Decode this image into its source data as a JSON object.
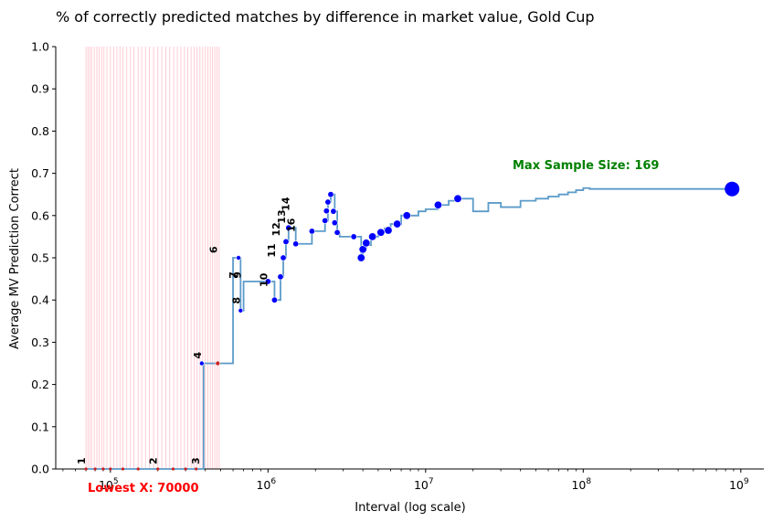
{
  "chart_data": {
    "type": "line",
    "title": "% of correctly predicted matches by difference in market value, Gold Cup",
    "xlabel": "Interval (log scale)",
    "ylabel": "Average MV Prediction Correct",
    "xscale": "log",
    "xlim": [
      45000,
      1400000000
    ],
    "ylim": [
      0,
      1
    ],
    "x_tick_labels": [
      {
        "exp": "5",
        "value": 100000
      },
      {
        "exp": "6",
        "value": 1000000
      },
      {
        "exp": "7",
        "value": 10000000
      },
      {
        "exp": "8",
        "value": 100000000
      },
      {
        "exp": "9",
        "value": 1000000000
      }
    ],
    "y_ticks": [
      0.0,
      0.1,
      0.2,
      0.3,
      0.4,
      0.5,
      0.6,
      0.7,
      0.8,
      0.9,
      1.0
    ],
    "y_tick_labels": [
      "0.0",
      "0.1",
      "0.2",
      "0.3",
      "0.4",
      "0.5",
      "0.6",
      "0.7",
      "0.8",
      "0.9",
      "1.0"
    ],
    "grid": false,
    "line_color": "#5b9bc9",
    "marker_color": "#0000ff",
    "low_marker_color": "#cc2222",
    "vline_color": "#ffc0cb",
    "series": [
      {
        "x": [
          70000,
          100000,
          200000,
          300000,
          380000,
          390000,
          480000,
          600000,
          650000,
          660000,
          670000,
          700000,
          1000000,
          1100000,
          1200000,
          1250000,
          1300000,
          1350000,
          1500000,
          1900000,
          2300000,
          2400000,
          2500000,
          2650000,
          2750000,
          2850000,
          3500000,
          3900000,
          4000000,
          4200000,
          4500000,
          5000000,
          5500000,
          6000000,
          7000000,
          8000000,
          9000000,
          10000000,
          12000000,
          14000000,
          16000000,
          20000000,
          25000000,
          30000000,
          40000000,
          50000000,
          60000000,
          70000000,
          80000000,
          90000000,
          100000000,
          110000000,
          880000000
        ],
        "y": [
          0.0,
          0.0,
          0.0,
          0.0,
          0.0,
          0.25,
          0.25,
          0.5,
          0.5,
          0.5,
          0.375,
          0.444,
          0.444,
          0.4,
          0.455,
          0.5,
          0.538,
          0.571,
          0.533,
          0.563,
          0.588,
          0.632,
          0.65,
          0.61,
          0.56,
          0.55,
          0.55,
          0.5,
          0.52,
          0.53,
          0.55,
          0.56,
          0.57,
          0.58,
          0.6,
          0.6,
          0.61,
          0.615,
          0.625,
          0.635,
          0.64,
          0.61,
          0.63,
          0.62,
          0.635,
          0.64,
          0.645,
          0.65,
          0.655,
          0.66,
          0.665,
          0.663,
          0.663
        ]
      }
    ],
    "marker_points": [
      {
        "x": 380000,
        "y": 0.25
      },
      {
        "x": 480000,
        "y": 0.25
      },
      {
        "x": 650000,
        "y": 0.5
      },
      {
        "x": 670000,
        "y": 0.375
      },
      {
        "x": 1000000,
        "y": 0.444
      },
      {
        "x": 1100000,
        "y": 0.4
      },
      {
        "x": 1200000,
        "y": 0.455
      },
      {
        "x": 1250000,
        "y": 0.5
      },
      {
        "x": 1300000,
        "y": 0.538
      },
      {
        "x": 1350000,
        "y": 0.571
      },
      {
        "x": 1500000,
        "y": 0.533
      },
      {
        "x": 1900000,
        "y": 0.563
      },
      {
        "x": 2300000,
        "y": 0.588
      },
      {
        "x": 2350000,
        "y": 0.611
      },
      {
        "x": 2400000,
        "y": 0.632
      },
      {
        "x": 2500000,
        "y": 0.65
      },
      {
        "x": 2600000,
        "y": 0.61
      },
      {
        "x": 2650000,
        "y": 0.583
      },
      {
        "x": 2750000,
        "y": 0.56
      },
      {
        "x": 3500000,
        "y": 0.55
      },
      {
        "x": 3900000,
        "y": 0.5
      },
      {
        "x": 4000000,
        "y": 0.52
      },
      {
        "x": 4200000,
        "y": 0.535
      },
      {
        "x": 4600000,
        "y": 0.55
      },
      {
        "x": 5200000,
        "y": 0.56
      },
      {
        "x": 5800000,
        "y": 0.565
      },
      {
        "x": 6600000,
        "y": 0.58
      },
      {
        "x": 7600000,
        "y": 0.6
      },
      {
        "x": 12000000,
        "y": 0.625
      },
      {
        "x": 16000000,
        "y": 0.64
      }
    ],
    "max_point": {
      "x": 880000000,
      "y": 0.663
    },
    "low_points_x": [
      70000,
      80000,
      90000,
      100000,
      120000,
      150000,
      200000,
      250000,
      300000,
      350000
    ],
    "vlines_x": [
      70000,
      72000,
      74000,
      76000,
      79000,
      82000,
      85000,
      88000,
      91000,
      95000,
      100000,
      105000,
      110000,
      115000,
      120000,
      127000,
      134000,
      141000,
      150000,
      158000,
      167000,
      177000,
      188000,
      200000,
      212000,
      225000,
      238000,
      252000,
      266000,
      280000,
      295000,
      310000,
      325000,
      340000,
      355000,
      370000,
      385000,
      400000,
      415000,
      430000,
      445000,
      460000,
      475000,
      490000
    ],
    "point_labels": [
      {
        "text": "1",
        "x": 70000,
        "y": 0.0
      },
      {
        "text": "2",
        "x": 200000,
        "y": 0.0
      },
      {
        "text": "3",
        "x": 370000,
        "y": 0.0
      },
      {
        "text": "4",
        "x": 380000,
        "y": 0.25
      },
      {
        "text": "6",
        "x": 480000,
        "y": 0.5
      },
      {
        "text": "7",
        "x": 640000,
        "y": 0.44
      },
      {
        "text": "9",
        "x": 680000,
        "y": 0.44
      },
      {
        "text": "8",
        "x": 670000,
        "y": 0.38
      },
      {
        "text": "10",
        "x": 1000000,
        "y": 0.42
      },
      {
        "text": "11",
        "x": 1120000,
        "y": 0.49
      },
      {
        "text": "12",
        "x": 1200000,
        "y": 0.54
      },
      {
        "text": "13",
        "x": 1300000,
        "y": 0.57
      },
      {
        "text": "14",
        "x": 1380000,
        "y": 0.6
      },
      {
        "text": "16",
        "x": 1500000,
        "y": 0.55
      }
    ],
    "annotations": {
      "max_sample": "Max Sample Size: 169",
      "lowest_x": "Lowest X: 70000"
    }
  }
}
